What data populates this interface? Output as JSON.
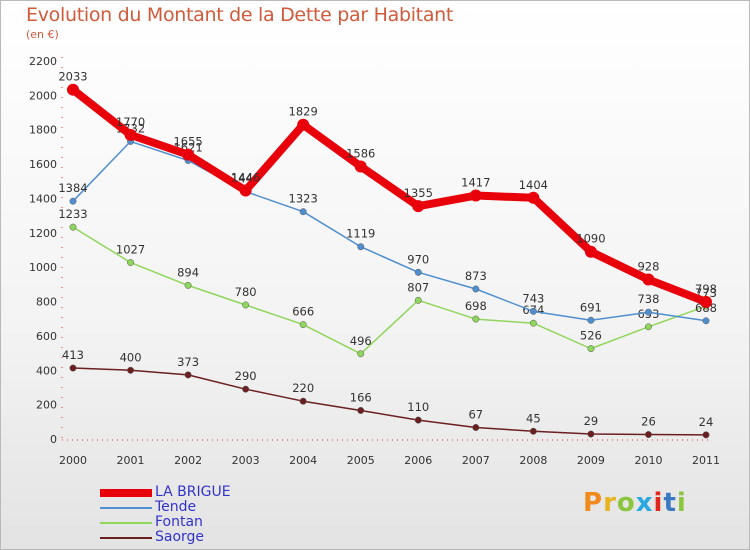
{
  "header": {
    "title": "Evolution du Montant de la Dette par Habitant",
    "subtitle": "(en €)"
  },
  "logo": {
    "text": "Proxiti",
    "colors": [
      "#f08a1c",
      "#e8b321",
      "#8cc63f",
      "#29a9e0",
      "#e0271c",
      "#3a79c2",
      "#8cc63f"
    ]
  },
  "chart_data": {
    "type": "line",
    "title": "Evolution du Montant de la Dette par Habitant",
    "subtitle": "(en €)",
    "x": [
      "2000",
      "2001",
      "2002",
      "2003",
      "2004",
      "2005",
      "2006",
      "2007",
      "2008",
      "2009",
      "2010",
      "2011"
    ],
    "ylim": [
      0,
      2200
    ],
    "yticks": [
      0,
      200,
      400,
      600,
      800,
      1000,
      1200,
      1400,
      1600,
      1800,
      2000,
      2200
    ],
    "grid": false,
    "legend_position": "bottom-left",
    "series": [
      {
        "name": "LA BRIGUE",
        "color": "#e8000b",
        "values": [
          2033,
          1770,
          1655,
          1446,
          1829,
          1586,
          1355,
          1417,
          1404,
          1090,
          928,
          798
        ]
      },
      {
        "name": "Tende",
        "color": "#4f8fcf",
        "values": [
          1384,
          1732,
          1621,
          1440,
          1323,
          1119,
          970,
          873,
          743,
          691,
          738,
          688
        ]
      },
      {
        "name": "Fontan",
        "color": "#8fd65c",
        "values": [
          1233,
          1027,
          894,
          780,
          666,
          496,
          807,
          698,
          674,
          526,
          653,
          773
        ]
      },
      {
        "name": "Saorge",
        "color": "#6b1f1f",
        "values": [
          413,
          400,
          373,
          290,
          220,
          166,
          110,
          67,
          45,
          29,
          26,
          24
        ]
      }
    ]
  }
}
